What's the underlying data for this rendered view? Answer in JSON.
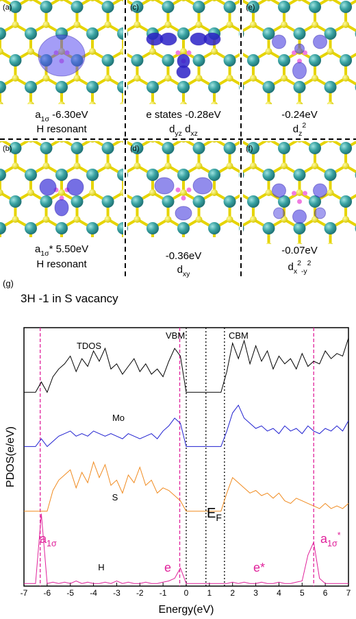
{
  "panels": [
    {
      "label": "(a)",
      "caption": [
        [
          "a",
          {
            "sub": "1σ"
          },
          " -6.30eV"
        ],
        [
          "H resonant"
        ]
      ]
    },
    {
      "label": "(b)",
      "caption": [
        [
          "a",
          {
            "sub": "1σ"
          },
          "* 5.50eV"
        ],
        [
          "H resonant"
        ]
      ]
    },
    {
      "label": "(c)",
      "caption": [
        [
          "e states -0.28eV"
        ],
        [
          "d",
          {
            "sub": "yz"
          },
          "  d",
          {
            "sub": "xz"
          }
        ]
      ]
    },
    {
      "label": "(d)",
      "caption": [
        [
          "-0.36eV"
        ],
        [
          "d",
          {
            "sub": "xy"
          }
        ]
      ]
    },
    {
      "label": "(e)",
      "caption": [
        [
          "-0.24eV"
        ],
        [
          "d",
          {
            "sub": "z"
          },
          {
            "sup": "2"
          }
        ]
      ]
    },
    {
      "label": "(f)",
      "caption": [
        [
          "-0.07eV"
        ],
        [
          "d",
          {
            "sub": "x"
          },
          {
            "sup": "2"
          },
          {
            "sub": "-y"
          },
          {
            "sup": "2"
          }
        ]
      ]
    }
  ],
  "chart_data": {
    "type": "line",
    "panel_label": "(g)",
    "title": "3H -1 in S vacancy",
    "x_label": "Energy(eV)",
    "y_label": "PDOS(e/eV)",
    "xlim": [
      -7,
      7
    ],
    "xticks": [
      -7,
      -6,
      -5,
      -4,
      -3,
      -2,
      -1,
      0,
      1,
      2,
      3,
      4,
      5,
      6,
      7
    ],
    "ylim": [
      0,
      100
    ],
    "x": [
      -7,
      -6.75,
      -6.5,
      -6.25,
      -6,
      -5.75,
      -5.5,
      -5.25,
      -5,
      -4.75,
      -4.5,
      -4.25,
      -4,
      -3.75,
      -3.5,
      -3.25,
      -3,
      -2.75,
      -2.5,
      -2.25,
      -2,
      -1.75,
      -1.5,
      -1.25,
      -1,
      -0.75,
      -0.5,
      -0.25,
      0,
      0.25,
      0.5,
      0.75,
      1,
      1.25,
      1.5,
      1.75,
      2,
      2.25,
      2.5,
      2.75,
      3,
      3.25,
      3.5,
      3.75,
      4,
      4.25,
      4.5,
      4.75,
      5,
      5.25,
      5.5,
      5.75,
      6,
      6.25,
      6.5,
      6.75,
      7
    ],
    "series": [
      {
        "name": "TDOS",
        "color": "#000000",
        "values": [
          75,
          75,
          75,
          79,
          75,
          81,
          84,
          86,
          89,
          83,
          88,
          85,
          91,
          87,
          92,
          84,
          86,
          82,
          85,
          88,
          83,
          86,
          82,
          84,
          81,
          87,
          92,
          89,
          75,
          75,
          75,
          75,
          75,
          75,
          75,
          83,
          94,
          88,
          95,
          86,
          93,
          87,
          91,
          84,
          89,
          86,
          88,
          84,
          90,
          85,
          87,
          86,
          91,
          88,
          90,
          89,
          96
        ]
      },
      {
        "name": "Mo",
        "color": "#1f1fd0",
        "values": [
          54,
          54,
          54,
          57,
          54,
          56,
          58,
          59,
          60,
          58,
          59,
          58,
          60,
          59,
          58,
          59,
          58,
          57,
          59,
          58,
          57,
          58,
          59,
          57,
          60,
          62,
          65,
          63,
          54,
          54,
          54,
          54,
          54,
          54,
          54,
          60,
          67,
          70,
          65,
          63,
          61,
          62,
          60,
          61,
          59,
          62,
          60,
          61,
          59,
          62,
          60,
          59,
          61,
          60,
          62,
          60,
          64
        ]
      },
      {
        "name": "S",
        "color": "#f08a1e",
        "values": [
          29,
          29,
          29,
          29,
          29,
          37,
          41,
          43,
          45,
          38,
          44,
          40,
          48,
          42,
          47,
          39,
          41,
          36,
          43,
          40,
          46,
          39,
          41,
          36,
          38,
          37,
          35,
          33,
          29,
          29,
          29,
          29,
          29,
          29,
          29,
          36,
          42,
          40,
          38,
          36,
          37,
          35,
          36,
          34,
          36,
          33,
          32,
          34,
          33,
          32,
          31,
          30,
          32,
          30,
          31,
          30,
          32
        ]
      },
      {
        "name": "H",
        "color": "#e0209a",
        "values": [
          1,
          1,
          1,
          28,
          1,
          1.5,
          1,
          1.5,
          1,
          2,
          1,
          1.5,
          1,
          1,
          1.5,
          1,
          2,
          1,
          1.5,
          1,
          1,
          1.5,
          1,
          1,
          1.5,
          2,
          3,
          7,
          1,
          1,
          1,
          1,
          1,
          1,
          1,
          1,
          1.5,
          1,
          1.5,
          1,
          1,
          1.5,
          1,
          1,
          1.5,
          1,
          1,
          1.5,
          2,
          12,
          17,
          3,
          1,
          1,
          1,
          1,
          1
        ]
      }
    ],
    "vlines": [
      {
        "value": -6.3,
        "color": "#e0209a",
        "style": "dashed"
      },
      {
        "value": -0.28,
        "color": "#e0209a",
        "style": "dashed"
      },
      {
        "value": 5.5,
        "color": "#e0209a",
        "style": "dashed"
      },
      {
        "value": 0,
        "color": "#000000",
        "style": "dotted"
      },
      {
        "value": 0.85,
        "color": "#000000",
        "style": "dotted"
      },
      {
        "value": 1.65,
        "color": "#000000",
        "style": "dotted"
      }
    ],
    "annotations": [
      {
        "text": [
          "VBM"
        ],
        "color": "#000000"
      },
      {
        "text": [
          "CBM"
        ],
        "color": "#000000"
      },
      {
        "text": [
          "E",
          {
            "sub": "F"
          }
        ],
        "color": "#000000"
      },
      {
        "text": [
          "a",
          {
            "sub": "1σ"
          }
        ],
        "color": "#e0209a"
      },
      {
        "text": [
          "e"
        ],
        "color": "#e0209a"
      },
      {
        "text": [
          "e*"
        ],
        "color": "#e0209a"
      },
      {
        "text": [
          "a",
          {
            "sub": "1σ"
          },
          {
            "sup": "*"
          }
        ],
        "color": "#e0209a"
      }
    ]
  }
}
